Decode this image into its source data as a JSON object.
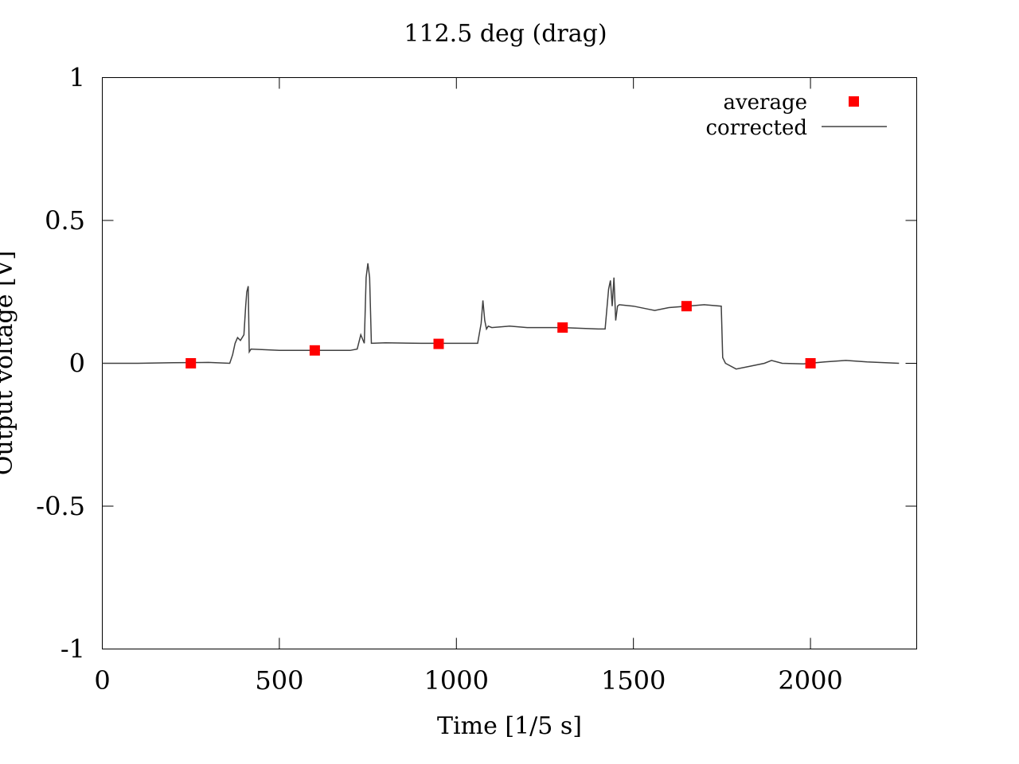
{
  "chart_data": {
    "type": "line",
    "title": "112.5 deg (drag)",
    "xlabel": "Time [1/5 s]",
    "ylabel": "Output voltage [V]",
    "xlim": [
      0,
      2300
    ],
    "ylim": [
      -1,
      1
    ],
    "x_ticks": [
      0,
      500,
      1000,
      1500,
      2000
    ],
    "y_ticks": [
      1,
      0.5,
      0,
      -0.5,
      -1
    ],
    "x_tick_labels": [
      "0",
      "500",
      "1000",
      "1500",
      "2000"
    ],
    "y_tick_labels": [
      "1",
      "0.5",
      "0",
      "-0.5",
      "-1"
    ],
    "grid": false,
    "legend_position": "top-right",
    "colors": {
      "average": "#ff0000",
      "corrected": "#404040"
    },
    "series": [
      {
        "name": "average",
        "style": "points",
        "x": [
          250,
          600,
          950,
          1300,
          1650,
          2000
        ],
        "y": [
          0.0,
          0.045,
          0.068,
          0.125,
          0.2,
          0.0
        ]
      },
      {
        "name": "corrected",
        "style": "line",
        "x": [
          0,
          100,
          200,
          300,
          360,
          368,
          375,
          382,
          390,
          400,
          405,
          408,
          412,
          415,
          420,
          500,
          600,
          700,
          720,
          730,
          740,
          745,
          750,
          755,
          760,
          800,
          900,
          1000,
          1060,
          1070,
          1075,
          1080,
          1085,
          1090,
          1100,
          1150,
          1200,
          1300,
          1400,
          1420,
          1430,
          1435,
          1440,
          1445,
          1450,
          1455,
          1460,
          1500,
          1540,
          1560,
          1600,
          1650,
          1700,
          1748,
          1752,
          1760,
          1790,
          1830,
          1870,
          1890,
          1920,
          1980,
          2040,
          2100,
          2160,
          2250
        ],
        "y": [
          0.0,
          0.0,
          0.002,
          0.003,
          0.0,
          0.03,
          0.07,
          0.09,
          0.08,
          0.1,
          0.2,
          0.25,
          0.27,
          0.04,
          0.05,
          0.045,
          0.045,
          0.045,
          0.05,
          0.1,
          0.07,
          0.3,
          0.35,
          0.3,
          0.07,
          0.072,
          0.07,
          0.07,
          0.07,
          0.14,
          0.22,
          0.15,
          0.12,
          0.13,
          0.125,
          0.13,
          0.125,
          0.125,
          0.12,
          0.12,
          0.26,
          0.29,
          0.2,
          0.3,
          0.15,
          0.2,
          0.205,
          0.2,
          0.19,
          0.185,
          0.195,
          0.2,
          0.205,
          0.2,
          0.02,
          0.0,
          -0.02,
          -0.01,
          0.0,
          0.01,
          0.0,
          -0.002,
          0.005,
          0.01,
          0.005,
          0.0
        ]
      }
    ]
  }
}
